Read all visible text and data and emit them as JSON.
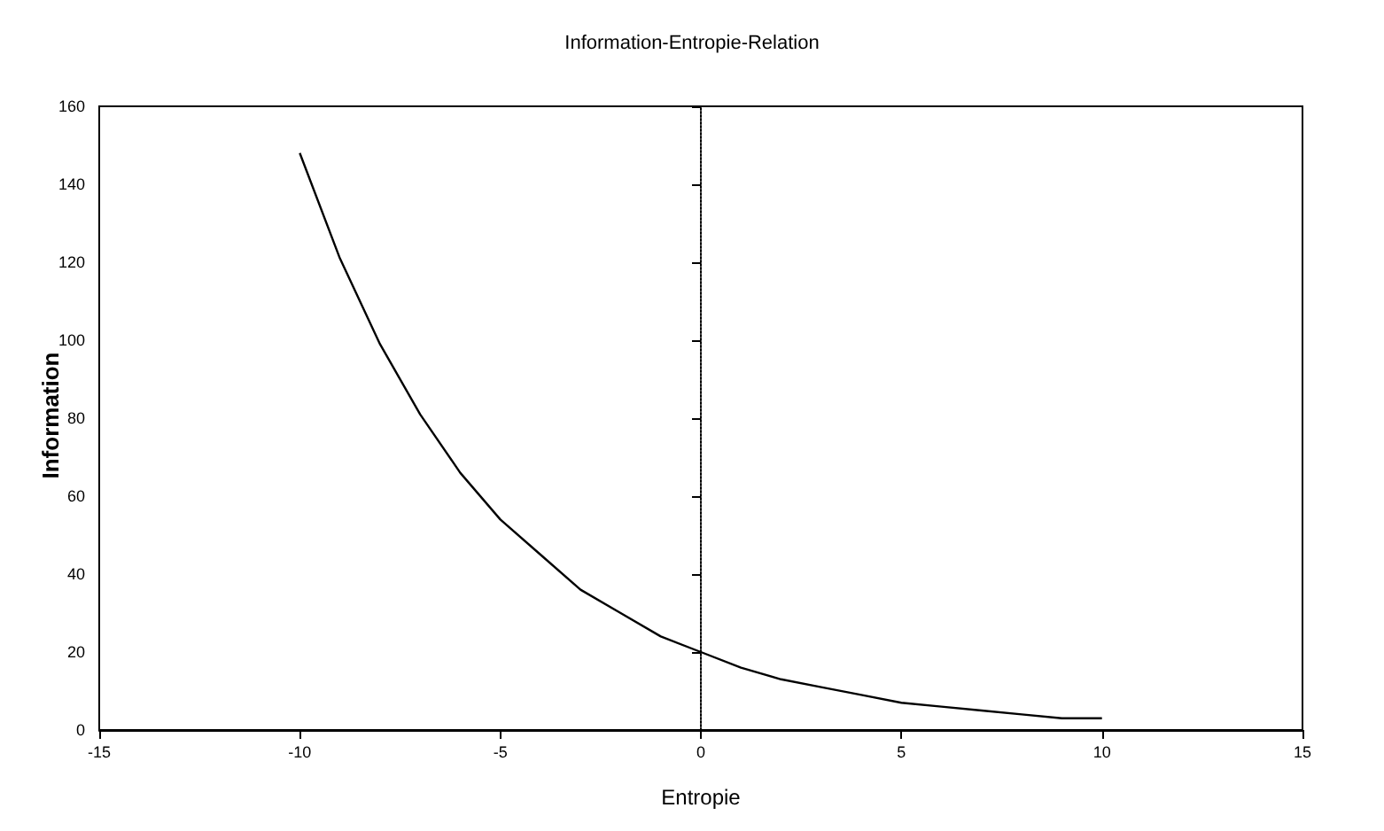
{
  "chart_data": {
    "type": "line",
    "title": "Information-Entropie-Relation",
    "xlabel": "Entropie",
    "ylabel": "Information",
    "x": [
      -10,
      -9,
      -8,
      -7,
      -6,
      -5,
      -4,
      -3,
      -2,
      -1,
      0,
      1,
      2,
      3,
      4,
      5,
      6,
      7,
      8,
      9,
      10
    ],
    "series": [
      {
        "color": "#000000",
        "values": [
          148,
          121,
          99,
          81,
          66,
          54,
          45,
          36,
          30,
          24,
          20,
          16,
          13,
          11,
          9,
          7,
          6,
          5,
          4,
          3,
          3
        ]
      }
    ],
    "xlim": [
      -15,
      15
    ],
    "xticks": [
      -15,
      -10,
      -5,
      0,
      5,
      10,
      15
    ],
    "ylim": [
      0,
      160
    ],
    "yticks": [
      0,
      20,
      40,
      60,
      80,
      100,
      120,
      140,
      160
    ],
    "marker": "none",
    "line_style": "solid"
  }
}
